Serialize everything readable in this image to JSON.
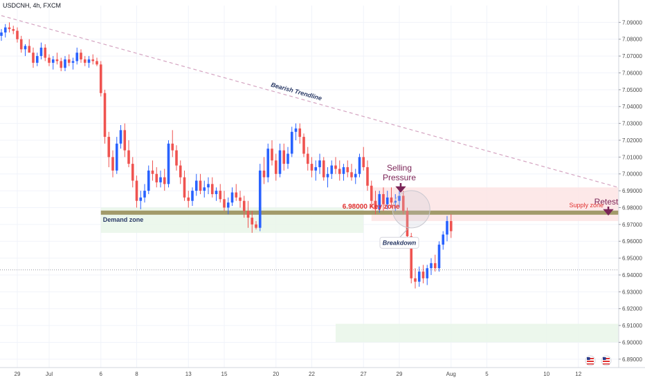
{
  "header": {
    "symbol": "USDCNH, 4h, FXCM"
  },
  "colors": {
    "bull": "#2962ff",
    "bear": "#ef5350",
    "trendline": "#d4a3c0",
    "key_band": "#a29a6a",
    "demand_fill": "#e9f6e9",
    "supply_fill": "#fde4e4",
    "annotation_purple": "#7b2457",
    "annotation_red": "#e0302f",
    "annotation_navy": "#2a3a66",
    "grid": "#f0f3fa",
    "axis_text": "#4a4a4a"
  },
  "chart_data": {
    "type": "candlestick",
    "title": "USDCNH, 4h, FXCM",
    "ylim": [
      6.885,
      7.1
    ],
    "y_ticks": [
      7.09,
      7.08,
      7.07,
      7.06,
      7.05,
      7.04,
      7.03,
      7.02,
      7.01,
      7.0,
      6.99,
      6.98,
      6.97,
      6.96,
      6.95,
      6.94,
      6.93,
      6.92,
      6.91,
      6.9,
      6.89
    ],
    "y_tick_labels": [
      "7.09000",
      "7.08000",
      "7.07000",
      "7.06000",
      "7.05000",
      "7.04000",
      "7.03000",
      "7.02000",
      "7.01000",
      "7.00000",
      "6.99000",
      "6.98000",
      "6.97000",
      "6.96000",
      "6.95000",
      "6.94000",
      "6.93000",
      "6.92000",
      "6.91000",
      "6.90000",
      "6.89000"
    ],
    "x_ticks": [
      {
        "label": "29",
        "index": 4
      },
      {
        "label": "Jul",
        "index": 12
      },
      {
        "label": "6",
        "index": 25
      },
      {
        "label": "8",
        "index": 34
      },
      {
        "label": "13",
        "index": 47
      },
      {
        "label": "15",
        "index": 56
      },
      {
        "label": "20",
        "index": 69
      },
      {
        "label": "22",
        "index": 78
      },
      {
        "label": "27",
        "index": 91
      },
      {
        "label": "29",
        "index": 100
      },
      {
        "label": "Aug",
        "index": 113
      },
      {
        "label": "5",
        "index": 122
      },
      {
        "label": "10",
        "index": 137
      },
      {
        "label": "12",
        "index": 145
      }
    ],
    "horizontal_line": 6.943,
    "candles": [
      [
        7.082,
        7.086,
        7.079,
        7.084
      ],
      [
        7.084,
        7.089,
        7.081,
        7.087
      ],
      [
        7.087,
        7.09,
        7.084,
        7.086
      ],
      [
        7.086,
        7.088,
        7.083,
        7.085
      ],
      [
        7.085,
        7.087,
        7.078,
        7.08
      ],
      [
        7.08,
        7.082,
        7.072,
        7.074
      ],
      [
        7.074,
        7.077,
        7.07,
        7.076
      ],
      [
        7.076,
        7.08,
        7.073,
        7.072
      ],
      [
        7.072,
        7.075,
        7.063,
        7.066
      ],
      [
        7.066,
        7.072,
        7.064,
        7.07
      ],
      [
        7.07,
        7.078,
        7.068,
        7.075
      ],
      [
        7.075,
        7.077,
        7.067,
        7.069
      ],
      [
        7.069,
        7.071,
        7.064,
        7.066
      ],
      [
        7.066,
        7.07,
        7.062,
        7.068
      ],
      [
        7.068,
        7.072,
        7.065,
        7.067
      ],
      [
        7.067,
        7.069,
        7.061,
        7.063
      ],
      [
        7.063,
        7.07,
        7.061,
        7.068
      ],
      [
        7.068,
        7.071,
        7.064,
        7.066
      ],
      [
        7.066,
        7.069,
        7.062,
        7.067
      ],
      [
        7.067,
        7.075,
        7.065,
        7.072
      ],
      [
        7.072,
        7.074,
        7.066,
        7.068
      ],
      [
        7.068,
        7.07,
        7.064,
        7.066
      ],
      [
        7.066,
        7.07,
        7.063,
        7.068
      ],
      [
        7.068,
        7.071,
        7.065,
        7.067
      ],
      [
        7.067,
        7.069,
        7.064,
        7.065
      ],
      [
        7.065,
        7.067,
        7.046,
        7.048
      ],
      [
        7.048,
        7.05,
        7.018,
        7.022
      ],
      [
        7.022,
        7.025,
        7.004,
        7.01
      ],
      [
        7.01,
        7.014,
        6.998,
        7.002
      ],
      [
        7.002,
        7.022,
        7.0,
        7.018
      ],
      [
        7.018,
        7.029,
        7.015,
        7.026
      ],
      [
        7.026,
        7.03,
        7.01,
        7.014
      ],
      [
        7.014,
        7.02,
        7.004,
        7.006
      ],
      [
        7.006,
        7.01,
        6.992,
        6.996
      ],
      [
        6.996,
        6.999,
        6.98,
        6.984
      ],
      [
        6.984,
        6.99,
        6.979,
        6.986
      ],
      [
        6.986,
        6.994,
        6.983,
        6.99
      ],
      [
        6.99,
        7.005,
        6.988,
        7.002
      ],
      [
        7.002,
        7.008,
        6.996,
        7.0
      ],
      [
        7.0,
        7.004,
        6.992,
        6.995
      ],
      [
        6.995,
        7.002,
        6.992,
        6.998
      ],
      [
        6.998,
        7.003,
        6.99,
        6.994
      ],
      [
        6.994,
        7.02,
        6.992,
        7.018
      ],
      [
        7.018,
        7.026,
        7.01,
        7.014
      ],
      [
        7.014,
        7.017,
        7.002,
        7.005
      ],
      [
        7.005,
        7.008,
        6.994,
        6.998
      ],
      [
        6.998,
        7.002,
        6.984,
        6.986
      ],
      [
        6.986,
        6.99,
        6.98,
        6.984
      ],
      [
        6.984,
        6.992,
        6.981,
        6.99
      ],
      [
        6.99,
        7.0,
        6.987,
        6.996
      ],
      [
        6.996,
        7.0,
        6.988,
        6.99
      ],
      [
        6.99,
        6.996,
        6.986,
        6.992
      ],
      [
        6.992,
        6.998,
        6.988,
        6.994
      ],
      [
        6.994,
        6.998,
        6.986,
        6.988
      ],
      [
        6.988,
        6.992,
        6.984,
        6.99
      ],
      [
        6.99,
        6.994,
        6.983,
        6.985
      ],
      [
        6.985,
        6.99,
        6.978,
        6.98
      ],
      [
        6.98,
        6.986,
        6.976,
        6.983
      ],
      [
        6.983,
        6.992,
        6.981,
        6.989
      ],
      [
        6.989,
        6.994,
        6.984,
        6.986
      ],
      [
        6.986,
        6.99,
        6.98,
        6.984
      ],
      [
        6.984,
        6.987,
        6.974,
        6.978
      ],
      [
        6.978,
        6.984,
        6.968,
        6.974
      ],
      [
        6.974,
        6.978,
        6.965,
        6.97
      ],
      [
        6.97,
        6.972,
        6.967,
        6.968
      ],
      [
        6.968,
        7.006,
        6.966,
        7.002
      ],
      [
        7.002,
        7.01,
        6.994,
        6.998
      ],
      [
        6.998,
        7.018,
        6.995,
        7.015
      ],
      [
        7.015,
        7.02,
        7.005,
        7.008
      ],
      [
        7.008,
        7.012,
        6.996,
        7.0
      ],
      [
        7.0,
        7.018,
        6.998,
        7.014
      ],
      [
        7.014,
        7.018,
        7.002,
        7.006
      ],
      [
        7.006,
        7.016,
        7.003,
        7.012
      ],
      [
        7.012,
        7.028,
        7.01,
        7.025
      ],
      [
        7.025,
        7.03,
        7.02,
        7.027
      ],
      [
        7.027,
        7.03,
        7.018,
        7.022
      ],
      [
        7.022,
        7.024,
        7.01,
        7.012
      ],
      [
        7.012,
        7.016,
        7.002,
        7.006
      ],
      [
        7.006,
        7.01,
        6.998,
        7.002
      ],
      [
        7.002,
        7.008,
        6.996,
        7.004
      ],
      [
        7.004,
        7.012,
        7.0,
        7.008
      ],
      [
        7.008,
        7.01,
        6.996,
        6.998
      ],
      [
        6.998,
        7.004,
        6.992,
        7.0
      ],
      [
        7.0,
        7.008,
        6.997,
        7.005
      ],
      [
        7.005,
        7.01,
        7.0,
        7.003
      ],
      [
        7.003,
        7.008,
        6.996,
        7.0
      ],
      [
        7.0,
        7.006,
        6.996,
        7.004
      ],
      [
        7.004,
        7.008,
        6.998,
        7.001
      ],
      [
        7.001,
        7.006,
        6.996,
        6.998
      ],
      [
        6.998,
        7.003,
        6.994,
        7.0
      ],
      [
        7.0,
        7.012,
        6.998,
        7.01
      ],
      [
        7.01,
        7.016,
        7.002,
        7.004
      ],
      [
        7.004,
        7.008,
        6.99,
        6.993
      ],
      [
        6.993,
        6.996,
        6.98,
        6.984
      ],
      [
        6.984,
        6.99,
        6.976,
        6.979
      ],
      [
        6.979,
        6.99,
        6.977,
        6.988
      ],
      [
        6.988,
        6.992,
        6.978,
        6.982
      ],
      [
        6.982,
        6.99,
        6.979,
        6.986
      ],
      [
        6.986,
        6.992,
        6.98,
        6.983
      ],
      [
        6.983,
        6.988,
        6.978,
        6.984
      ],
      [
        6.984,
        6.99,
        6.98,
        6.987
      ],
      [
        6.987,
        6.99,
        6.976,
        6.978
      ],
      [
        6.978,
        6.98,
        6.96,
        6.963
      ],
      [
        6.963,
        6.965,
        6.935,
        6.938
      ],
      [
        6.938,
        6.944,
        6.932,
        6.936
      ],
      [
        6.936,
        6.945,
        6.933,
        6.942
      ],
      [
        6.942,
        6.946,
        6.935,
        6.938
      ],
      [
        6.938,
        6.946,
        6.934,
        6.944
      ],
      [
        6.944,
        6.95,
        6.94,
        6.947
      ],
      [
        6.947,
        6.952,
        6.942,
        6.944
      ],
      [
        6.944,
        6.96,
        6.942,
        6.958
      ],
      [
        6.958,
        6.966,
        6.955,
        6.964
      ],
      [
        6.964,
        6.975,
        6.96,
        6.972
      ],
      [
        6.972,
        6.976,
        6.962,
        6.966
      ]
    ],
    "trendline": {
      "from": [
        0,
        7.094
      ],
      "to": [
        155,
        6.992
      ],
      "label": "Bearish Trendline"
    },
    "zones": [
      {
        "name": "demand",
        "label": "Demand zone",
        "y_low": 6.965,
        "y_high": 6.98,
        "x_from": 25,
        "x_to": 91
      },
      {
        "name": "supply",
        "label": "Supply zone",
        "y_low": 6.972,
        "y_high": 6.992,
        "x_from": 93,
        "x_to": 155
      },
      {
        "name": "lower",
        "label": "",
        "y_low": 6.9,
        "y_high": 6.911,
        "x_from": 84,
        "x_to": 155
      }
    ],
    "key_zone": {
      "label": "6.98000 Key zone",
      "value": 6.977
    },
    "annotations": {
      "selling_pressure": [
        "Selling",
        "Pressure"
      ],
      "retest": "Retest",
      "breakdown": "Breakdown"
    }
  }
}
